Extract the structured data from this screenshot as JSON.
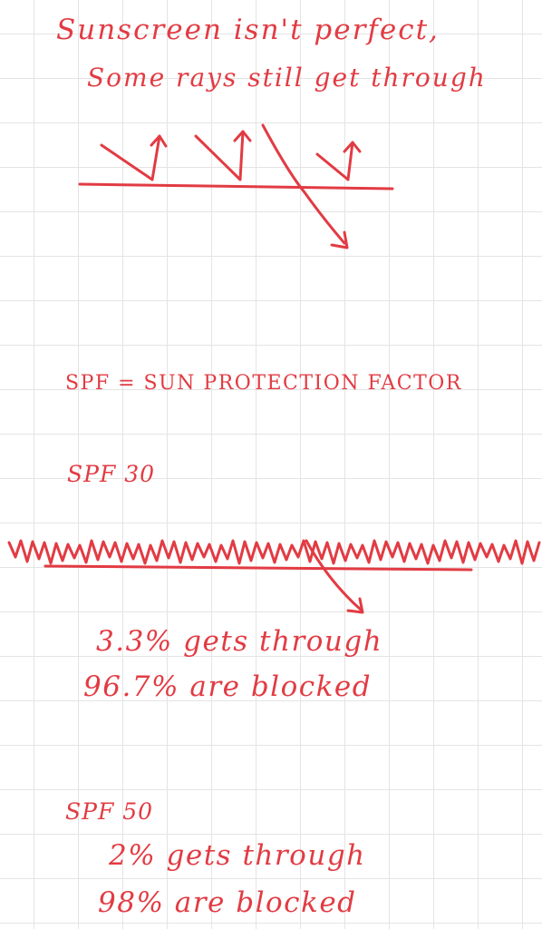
{
  "note": {
    "title_line_1": "Sunscreen isn't perfect,",
    "title_line_2": "Some rays still get through",
    "spf_definition": "SPF = SUN PROTECTION FACTOR",
    "spf30": {
      "label": "SPF 30",
      "gets_through": "3.3% gets through",
      "blocked": "96.7% are blocked"
    },
    "spf50": {
      "label": "SPF 50",
      "gets_through": "2% gets through",
      "blocked": "98% are blocked"
    }
  },
  "colors": {
    "ink": "#e23b43",
    "grid": "#e4e4e4",
    "background": "#ffffff"
  }
}
